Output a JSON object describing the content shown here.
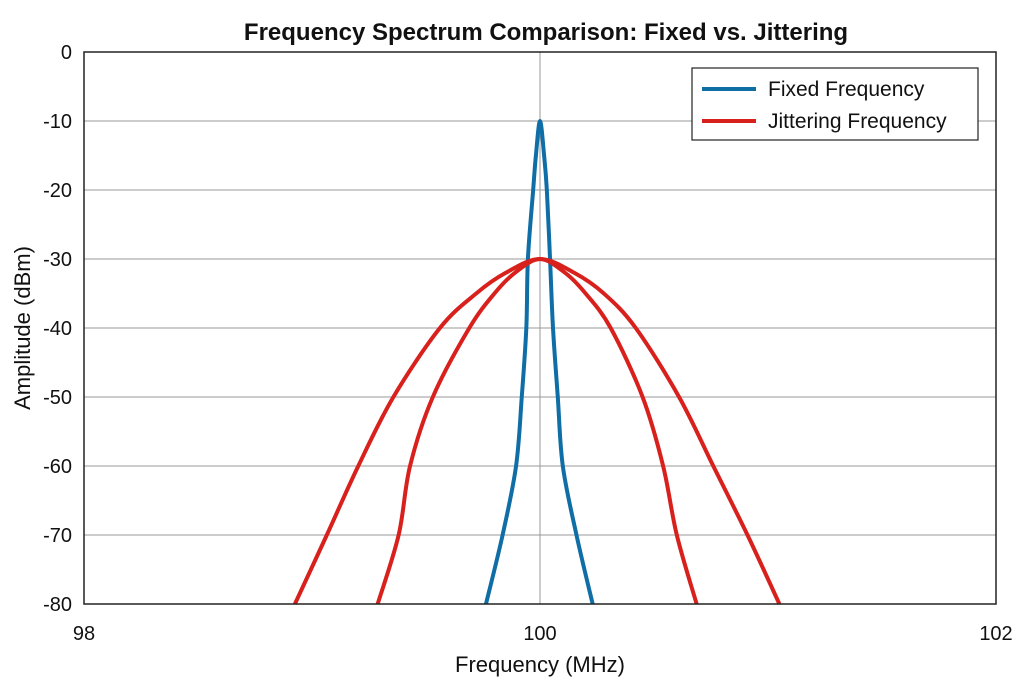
{
  "chart_data": {
    "type": "line",
    "title": "Frequency Spectrum Comparison: Fixed vs. Jittering",
    "xlabel": "Frequency (MHz)",
    "ylabel": "Amplitude (dBm)",
    "xlim": [
      98,
      102
    ],
    "ylim": [
      -80,
      0
    ],
    "xticks": [
      98,
      100,
      102
    ],
    "yticks": [
      0,
      -10,
      -20,
      -30,
      -40,
      -50,
      -60,
      -70,
      -80
    ],
    "grid": true,
    "legend_position": "top-right",
    "series": [
      {
        "name": "Fixed Frequency",
        "color": "#0f6ea6",
        "x": [
          99.763,
          99.836,
          99.895,
          99.92,
          99.94,
          99.947,
          99.97,
          99.982,
          100,
          100.018,
          100.03,
          100.044,
          100.057,
          100.078,
          100.1,
          100.16,
          100.231
        ],
        "y": [
          -80,
          -70,
          -60,
          -50,
          -40,
          -30,
          -20,
          -15,
          -10,
          -15,
          -20,
          -30,
          -40,
          -50,
          -60,
          -70,
          -80
        ]
      },
      {
        "name": "Jittering Frequency",
        "color": "#d8201c",
        "x": [
          98.925,
          99.065,
          99.203,
          99.357,
          99.561,
          99.72,
          99.85,
          100,
          100.15,
          100.28,
          100.42,
          100.61,
          100.76,
          100.91,
          101.05
        ],
        "y": [
          -80,
          -70,
          -60,
          -50,
          -40,
          -35,
          -32,
          -30,
          -32,
          -35,
          -40,
          -50,
          -60,
          -70,
          -80
        ]
      },
      {
        "color": "#d8201c",
        "x": [
          99.288,
          99.38,
          99.43,
          99.53,
          99.69,
          99.8,
          99.89,
          100,
          100.11,
          100.2,
          100.31,
          100.45,
          100.54,
          100.6,
          100.687
        ],
        "y": [
          -80,
          -70,
          -60,
          -50,
          -40,
          -35,
          -32,
          -30,
          -32,
          -35,
          -40,
          -50,
          -60,
          -70,
          -80
        ]
      }
    ]
  }
}
